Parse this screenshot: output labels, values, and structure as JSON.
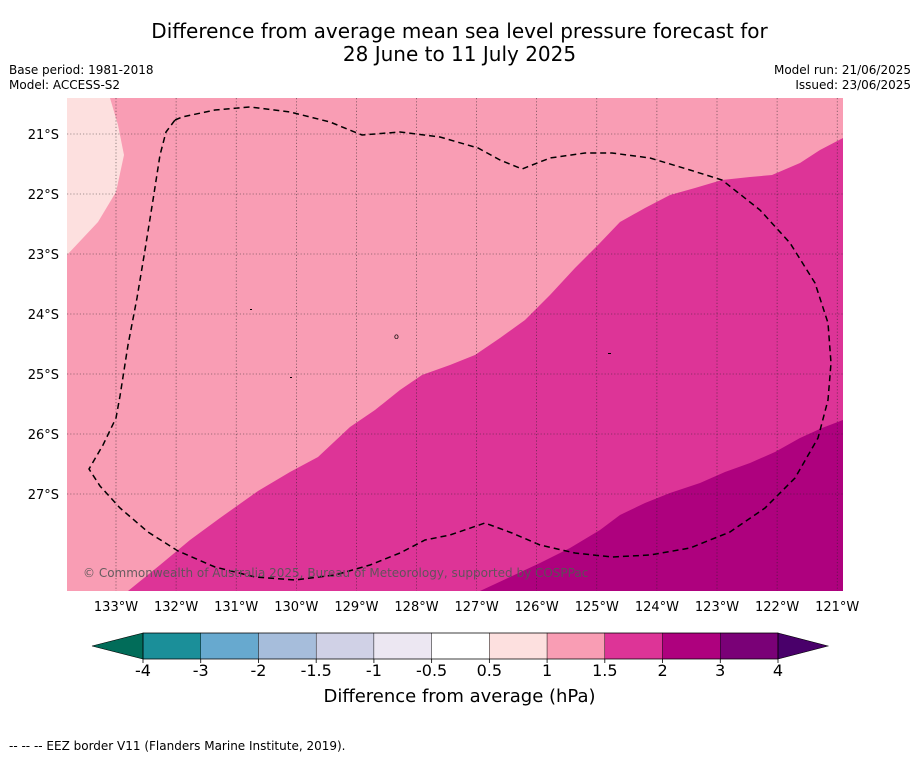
{
  "title": {
    "line1": "Difference from average mean sea level pressure forecast for",
    "line2": "28 June to 11 July 2025"
  },
  "meta": {
    "base_period": "Base period: 1981-2018",
    "model": "Model: ACCESS-S2",
    "model_run": "Model run: 21/06/2025",
    "issued": "Issued: 23/06/2025"
  },
  "map": {
    "lat_labels": [
      "21°S",
      "22°S",
      "23°S",
      "24°S",
      "25°S",
      "26°S",
      "27°S"
    ],
    "lon_labels": [
      "133°W",
      "132°W",
      "131°W",
      "130°W",
      "129°W",
      "128°W",
      "127°W",
      "126°W",
      "125°W",
      "124°W",
      "123°W",
      "122°W",
      "121°W"
    ],
    "copyright": "© Commonwealth of Australia 2025, Bureau of Meteorology, supported by COSPPac",
    "region_colors": {
      "0.5_to_1": "#fde0df",
      "1_to_1.5": "#f99db4",
      "1.5_to_2": "#dd3497",
      "2_to_3": "#ae017e"
    }
  },
  "colorbar": {
    "ticks": [
      "-4",
      "-3",
      "-2",
      "-1.5",
      "-1",
      "-0.5",
      "0.5",
      "1",
      "1.5",
      "2",
      "3",
      "4"
    ],
    "colors": [
      "#1b8f99",
      "#67a9cf",
      "#a6bddb",
      "#d0d1e6",
      "#ece7f2",
      "#ffffff",
      "#fde0df",
      "#f99db4",
      "#dd3497",
      "#ae017e",
      "#7a0177"
    ],
    "extend_low_color": "#016c59",
    "extend_high_color": "#49006a",
    "label": "Difference from average (hPa)"
  },
  "footer": {
    "legend": "--  --  -- EEZ border V11 (Flanders Marine Institute, 2019)."
  }
}
